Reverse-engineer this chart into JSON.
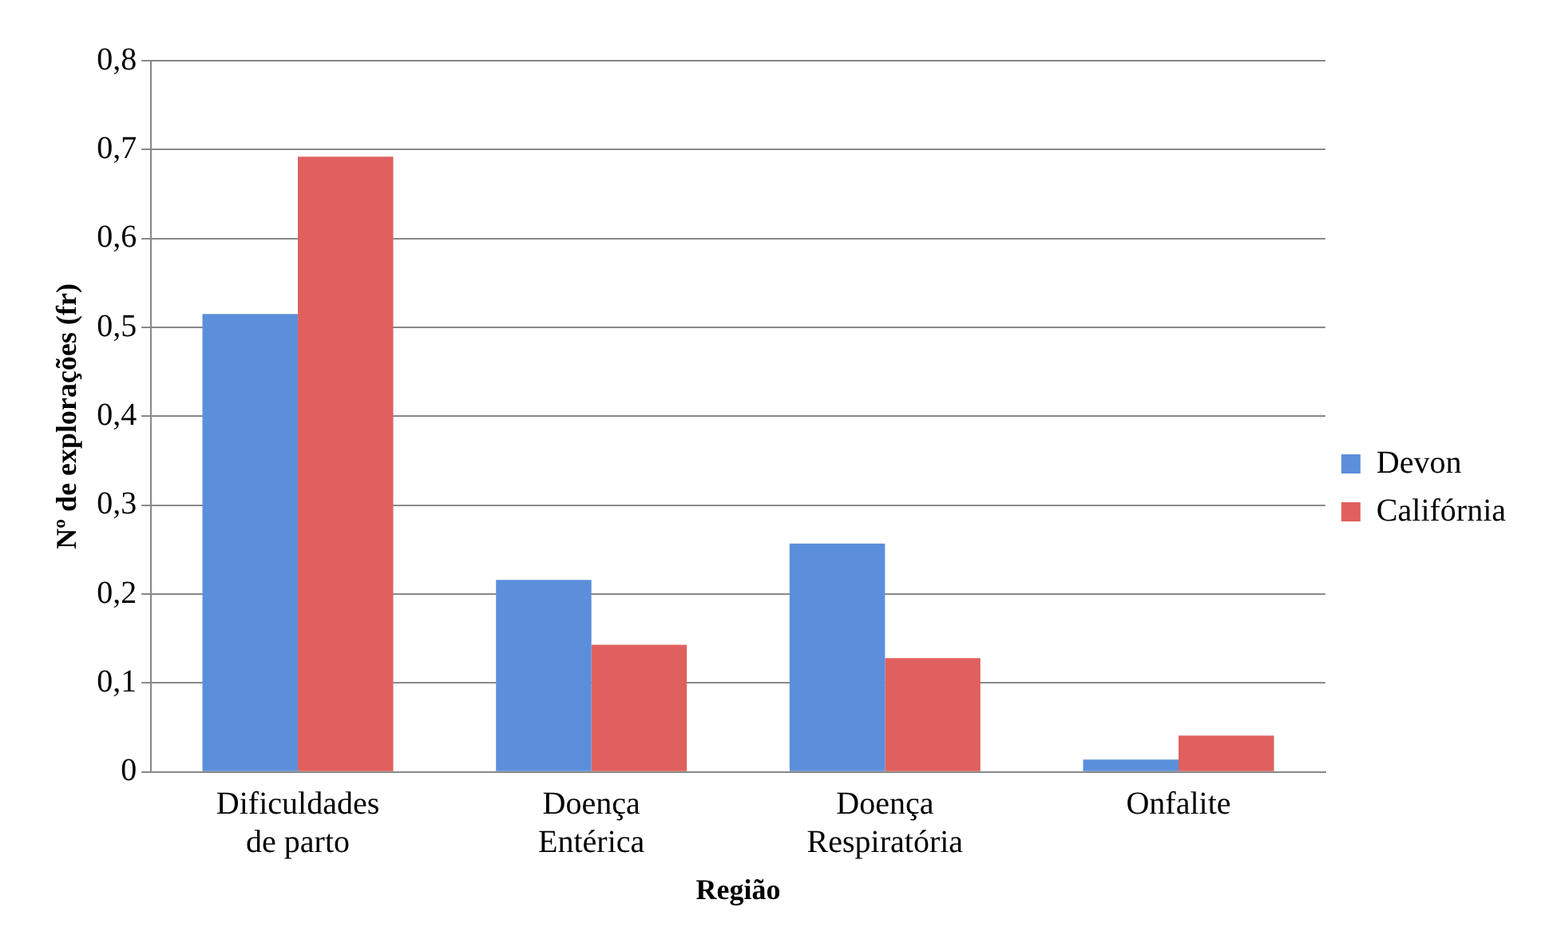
{
  "chart_data": {
    "type": "bar",
    "xlabel": "Região",
    "ylabel": "Nº de explorações (fr)",
    "categories": [
      "Dificuldades de parto",
      "Doença Entérica",
      "Doença Respiratória",
      "Onfalite"
    ],
    "series": [
      {
        "name": "Devon",
        "color": "#5b8fdb",
        "values": [
          0.515,
          0.216,
          0.257,
          0.014
        ]
      },
      {
        "name": "Califórnia",
        "color": "#e0605e",
        "values": [
          0.692,
          0.143,
          0.128,
          0.041
        ]
      }
    ],
    "ylim": [
      0,
      0.8
    ],
    "yticks": [
      {
        "value": 0,
        "label": "0"
      },
      {
        "value": 0.1,
        "label": "0,1"
      },
      {
        "value": 0.2,
        "label": "0,2"
      },
      {
        "value": 0.3,
        "label": "0,3"
      },
      {
        "value": 0.4,
        "label": "0,4"
      },
      {
        "value": 0.5,
        "label": "0,5"
      },
      {
        "value": 0.6,
        "label": "0,6"
      },
      {
        "value": 0.7,
        "label": "0,7"
      },
      {
        "value": 0.8,
        "label": "0,8"
      }
    ],
    "grid": "y",
    "legend": "right"
  }
}
